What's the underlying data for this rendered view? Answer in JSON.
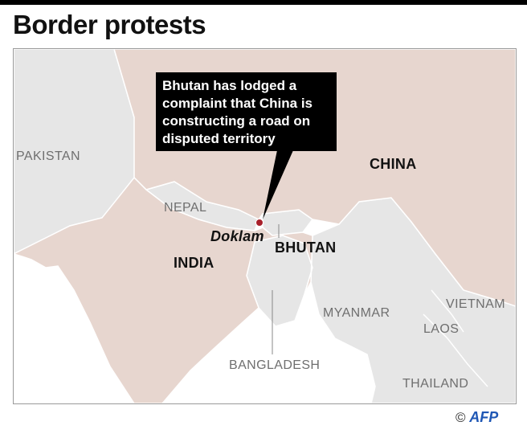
{
  "title": "Border protests",
  "callout": {
    "lines": [
      "Bhutan has lodged a",
      "complaint that China is",
      "constructing a road on",
      "disputed territory"
    ]
  },
  "labels": {
    "pakistan": "PAKISTAN",
    "china": "CHINA",
    "nepal": "NEPAL",
    "doklam": "Doklam",
    "bhutan": "BHUTAN",
    "india": "INDIA",
    "myanmar": "MYANMAR",
    "vietnam": "VIETNAM",
    "laos": "LAOS",
    "bangladesh": "BANGLADESH",
    "thailand": "THAILAND"
  },
  "credit": {
    "symbol": "©",
    "agency": "AFP"
  },
  "colors": {
    "highlight_land": "#e7d6cf",
    "other_land": "#e6e6e6",
    "water": "#ffffff",
    "marker": "#a8202a",
    "callout_bg": "#000000"
  }
}
